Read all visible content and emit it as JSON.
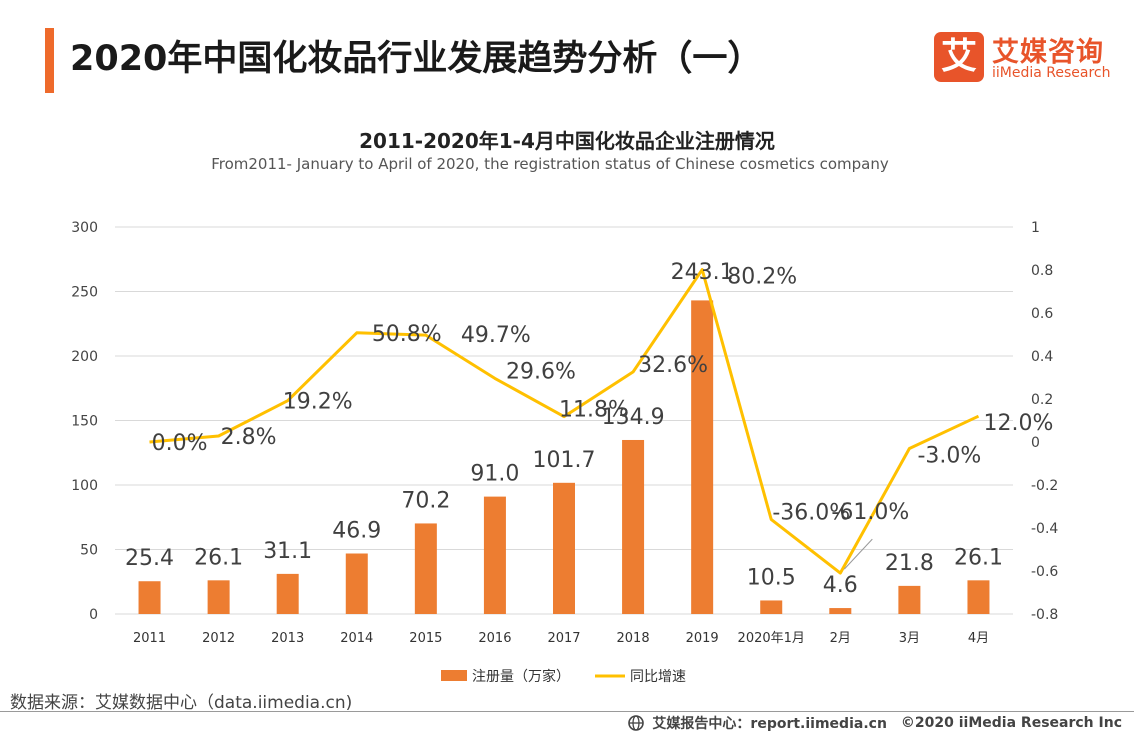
{
  "header": {
    "title": "2020年中国化妆品行业发展趋势分析（一）",
    "logo_mark": "艾",
    "logo_cn": "艾媒咨询",
    "logo_en": "iiMedia Research"
  },
  "chart_data": {
    "type": "bar+line",
    "title": "2011-2020年1-4月中国化妆品企业注册情况",
    "subtitle": "From2011- January to April of 2020, the registration status of Chinese cosmetics company",
    "categories": [
      "2011",
      "2012",
      "2013",
      "2014",
      "2015",
      "2016",
      "2017",
      "2018",
      "2019",
      "2020年1月",
      "2月",
      "3月",
      "4月"
    ],
    "series": [
      {
        "name": "注册量（万家）",
        "type": "bar",
        "axis": "left",
        "color": "#ed7d31",
        "values": [
          25.4,
          26.1,
          31.1,
          46.9,
          70.2,
          91.0,
          101.7,
          134.9,
          243.1,
          10.5,
          4.6,
          21.8,
          26.1
        ],
        "labels": [
          "25.4",
          "26.1",
          "31.1",
          "46.9",
          "70.2",
          "91.0",
          "101.7",
          "134.9",
          "243.1",
          "10.5",
          "4.6",
          "21.8",
          "26.1"
        ]
      },
      {
        "name": "同比增速",
        "type": "line",
        "axis": "right",
        "color": "#ffc000",
        "values": [
          0.0,
          0.028,
          0.192,
          0.508,
          0.497,
          0.296,
          0.118,
          0.326,
          0.802,
          -0.36,
          -0.61,
          -0.03,
          0.12
        ],
        "labels": [
          "0.0%",
          "2.8%",
          "19.2%",
          "50.8%",
          "49.7%",
          "29.6%",
          "11.8%",
          "32.6%",
          "80.2%",
          "-36.0%",
          "-61.0%",
          "-3.0%",
          "12.0%"
        ]
      }
    ],
    "left_axis": {
      "min": 0,
      "max": 300,
      "ticks": [
        "0",
        "50",
        "100",
        "150",
        "200",
        "250",
        "300"
      ]
    },
    "right_axis": {
      "min": -0.8,
      "max": 1,
      "ticks": [
        "-0.8",
        "-0.6",
        "-0.4",
        "-0.2",
        "0",
        "0.2",
        "0.4",
        "0.6",
        "0.8",
        "1"
      ]
    },
    "grid": true,
    "legend_position": "bottom"
  },
  "footer": {
    "source": "数据来源：艾媒数据中心（data.iimedia.cn)",
    "report": "艾媒报告中心：report.iimedia.cn",
    "copyright": "©2020  iiMedia Research  Inc"
  }
}
